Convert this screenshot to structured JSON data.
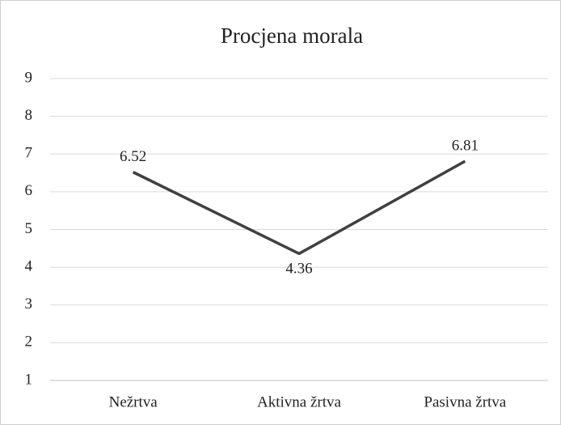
{
  "chart_data": {
    "type": "line",
    "title": "Procjena morala",
    "categories": [
      "Nežrtva",
      "Aktivna žrtva",
      "Pasivna žrtva"
    ],
    "series": [
      {
        "name": "Procjena morala",
        "color": "#404040",
        "values": [
          6.52,
          4.36,
          6.81
        ]
      }
    ],
    "ylim": [
      1,
      9
    ],
    "yticks": [
      1,
      2,
      3,
      4,
      5,
      6,
      7,
      8,
      9
    ],
    "grid": true
  }
}
